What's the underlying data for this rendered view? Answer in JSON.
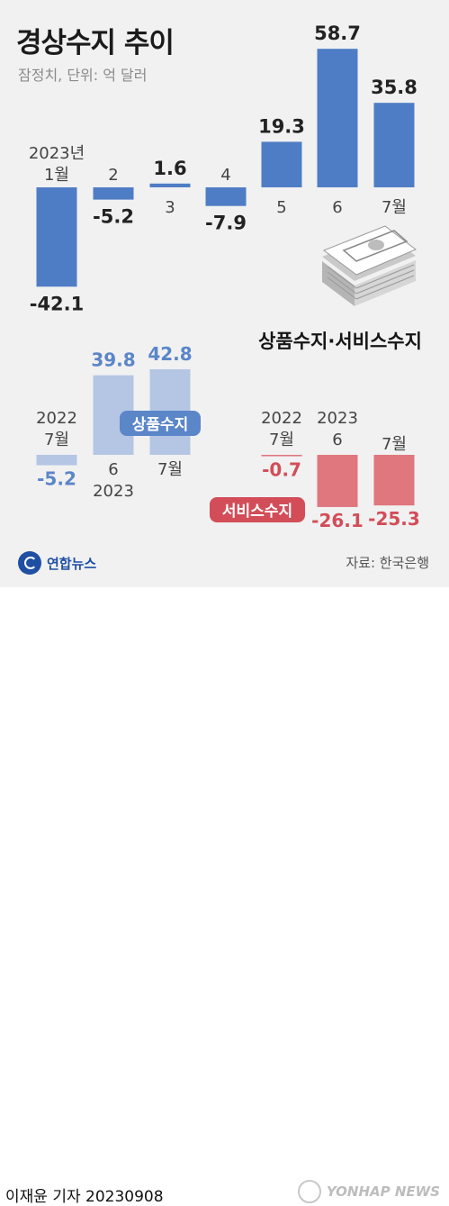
{
  "title": "경상수지 추이",
  "subtitle": "잠정치, 단위: 억 달러",
  "chart_data": [
    {
      "type": "bar",
      "name": "current-account",
      "categories": [
        "2023년\n1월",
        "2",
        "3",
        "4",
        "5",
        "6",
        "7월"
      ],
      "values": [
        -42.1,
        -5.2,
        1.6,
        -7.9,
        19.3,
        58.7,
        35.8
      ],
      "value_labels": [
        "-42.1",
        "-5.2",
        "1.6",
        "-7.9",
        "19.3",
        "58.7",
        "35.8"
      ],
      "color": "#4f7dc5"
    },
    {
      "type": "bar",
      "name": "goods-balance",
      "label": "상품수지",
      "categories": [
        "2022\n7월",
        "6\n2023",
        "7월"
      ],
      "values": [
        -5.2,
        39.8,
        42.8
      ],
      "value_labels": [
        "-5.2",
        "39.8",
        "42.8"
      ],
      "color": "#b4c6e4",
      "label_color": "#5b86c8"
    },
    {
      "type": "bar",
      "name": "services-balance",
      "label": "서비스수지",
      "categories": [
        "2022\n7월",
        "2023\n6",
        "7월"
      ],
      "values": [
        -0.7,
        -26.1,
        -25.3
      ],
      "value_labels": [
        "-0.7",
        "-26.1",
        "-25.3"
      ],
      "color": "#e0767e",
      "label_color": "#d24d58"
    }
  ],
  "lower_section_title": "상품수지·서비스수지",
  "logo_text": "연합뉴스",
  "source": "자료: 한국은행",
  "byline": "이재윤 기자  20230908",
  "watermark": "YONHAP NEWS",
  "icons": {
    "illustration": "money-stack-icon"
  }
}
